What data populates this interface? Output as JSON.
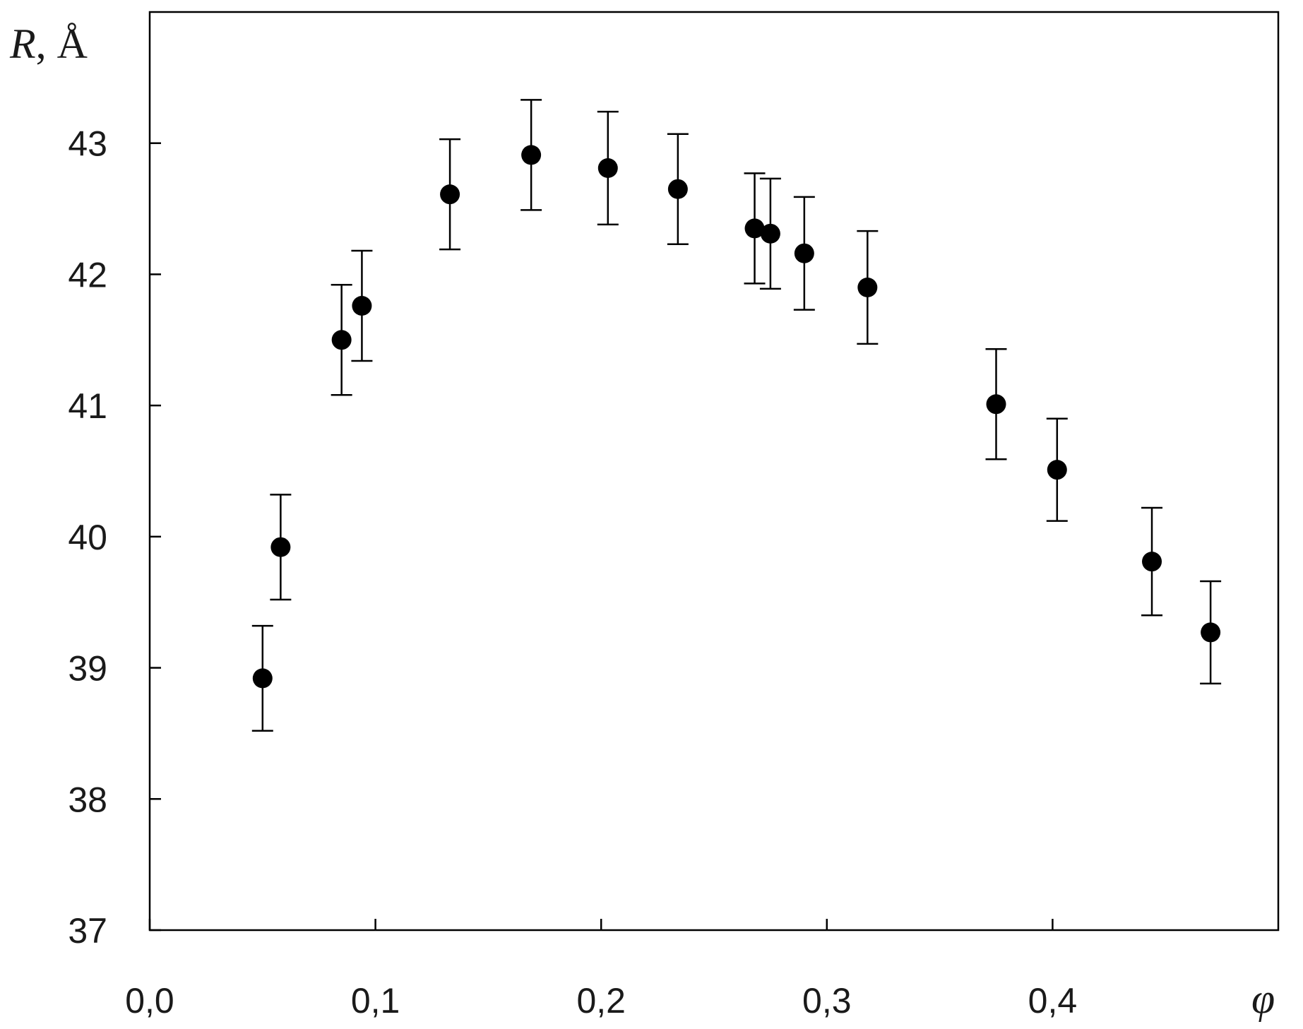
{
  "chart_data": {
    "type": "scatter",
    "title": "",
    "xlabel": "φ",
    "ylabel_symbol": "R",
    "ylabel_unit": ", Å",
    "xlim": [
      0.0,
      0.5
    ],
    "ylim": [
      37,
      44
    ],
    "x_ticks": [
      0.0,
      0.1,
      0.2,
      0.3,
      0.4
    ],
    "x_tick_labels": [
      "0,0",
      "0,1",
      "0,2",
      "0,3",
      "0,4"
    ],
    "y_ticks": [
      37,
      38,
      39,
      40,
      41,
      42,
      43
    ],
    "y_tick_labels": [
      "37",
      "38",
      "39",
      "40",
      "41",
      "42",
      "43"
    ],
    "grid": false,
    "legend": "none",
    "marker_color": "#000000",
    "points": [
      {
        "x": 0.05,
        "y": 38.92,
        "err": 0.4
      },
      {
        "x": 0.058,
        "y": 39.92,
        "err": 0.4
      },
      {
        "x": 0.085,
        "y": 41.5,
        "err": 0.42
      },
      {
        "x": 0.094,
        "y": 41.76,
        "err": 0.42
      },
      {
        "x": 0.133,
        "y": 42.61,
        "err": 0.42
      },
      {
        "x": 0.169,
        "y": 42.91,
        "err": 0.42
      },
      {
        "x": 0.203,
        "y": 42.81,
        "err": 0.43
      },
      {
        "x": 0.234,
        "y": 42.65,
        "err": 0.42
      },
      {
        "x": 0.268,
        "y": 42.35,
        "err": 0.42
      },
      {
        "x": 0.275,
        "y": 42.31,
        "err": 0.42
      },
      {
        "x": 0.29,
        "y": 42.16,
        "err": 0.43
      },
      {
        "x": 0.318,
        "y": 41.9,
        "err": 0.43
      },
      {
        "x": 0.375,
        "y": 41.01,
        "err": 0.42
      },
      {
        "x": 0.402,
        "y": 40.51,
        "err": 0.39
      },
      {
        "x": 0.444,
        "y": 39.81,
        "err": 0.41
      },
      {
        "x": 0.47,
        "y": 39.27,
        "err": 0.39
      }
    ]
  }
}
